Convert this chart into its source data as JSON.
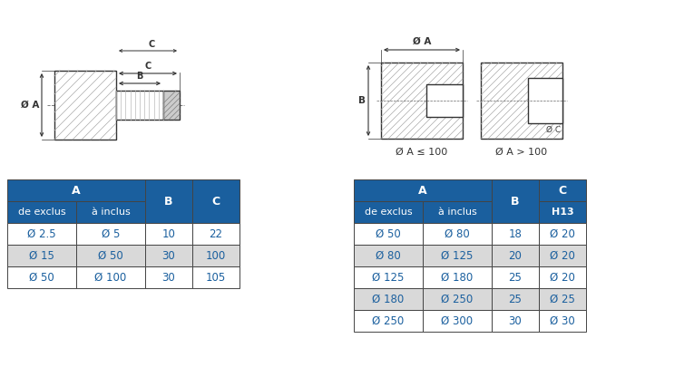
{
  "header_color": "#1a5f9e",
  "header_text_color": "#ffffff",
  "row_colors": [
    "#ffffff",
    "#d9d9d9"
  ],
  "cell_text_color": "#1a5f9e",
  "border_color": "#444444",
  "table1_data": [
    [
      "Ø 2.5",
      "Ø 5",
      "10",
      "22"
    ],
    [
      "Ø 15",
      "Ø 50",
      "30",
      "100"
    ],
    [
      "Ø 50",
      "Ø 100",
      "30",
      "105"
    ]
  ],
  "table2_data": [
    [
      "Ø 50",
      "Ø 80",
      "18",
      "Ø 20"
    ],
    [
      "Ø 80",
      "Ø 125",
      "20",
      "Ø 20"
    ],
    [
      "Ø 125",
      "Ø 180",
      "25",
      "Ø 20"
    ],
    [
      "Ø 180",
      "Ø 250",
      "25",
      "Ø 25"
    ],
    [
      "Ø 250",
      "Ø 300",
      "30",
      "Ø 30"
    ]
  ],
  "fig_width": 7.65,
  "fig_height": 4.16,
  "background_color": "#ffffff"
}
